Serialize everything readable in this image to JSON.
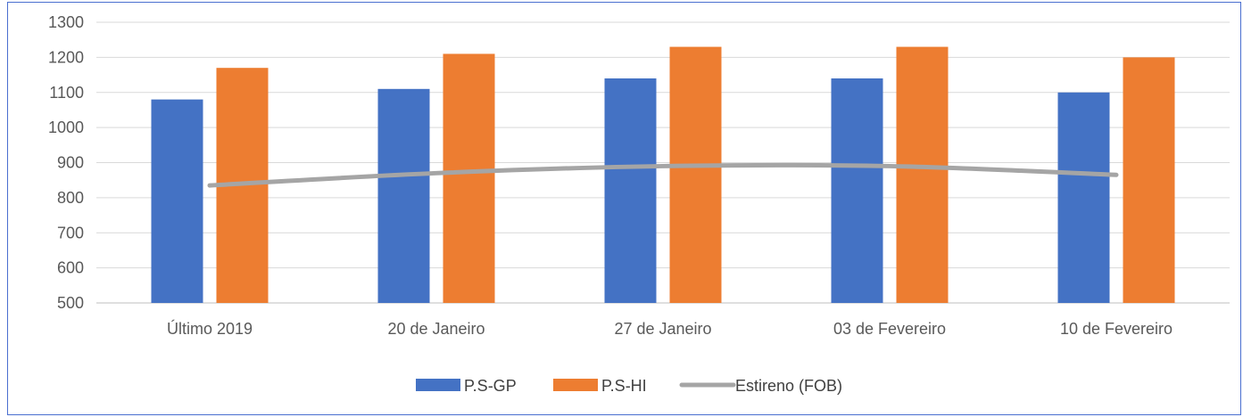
{
  "chart_data": {
    "type": "bar",
    "title": "",
    "xlabel": "",
    "ylabel": "",
    "categories": [
      "Último 2019",
      "20 de Janeiro",
      "27 de Janeiro",
      "03 de Fevereiro",
      "10 de Fevereiro"
    ],
    "ylim": [
      500,
      1300
    ],
    "yticks": [
      500,
      600,
      700,
      800,
      900,
      1000,
      1100,
      1200,
      1300
    ],
    "grid": true,
    "legend_position": "bottom",
    "series": [
      {
        "name": "P.S-GP",
        "type": "bar",
        "color": "#4472c4",
        "values": [
          1080,
          1110,
          1140,
          1140,
          1100
        ]
      },
      {
        "name": "P.S-HI",
        "type": "bar",
        "color": "#ed7d31",
        "values": [
          1170,
          1210,
          1230,
          1230,
          1200
        ]
      },
      {
        "name": "Estireno (FOB)",
        "type": "line",
        "color": "#a5a5a5",
        "values": [
          835,
          870,
          890,
          890,
          865
        ]
      }
    ]
  }
}
